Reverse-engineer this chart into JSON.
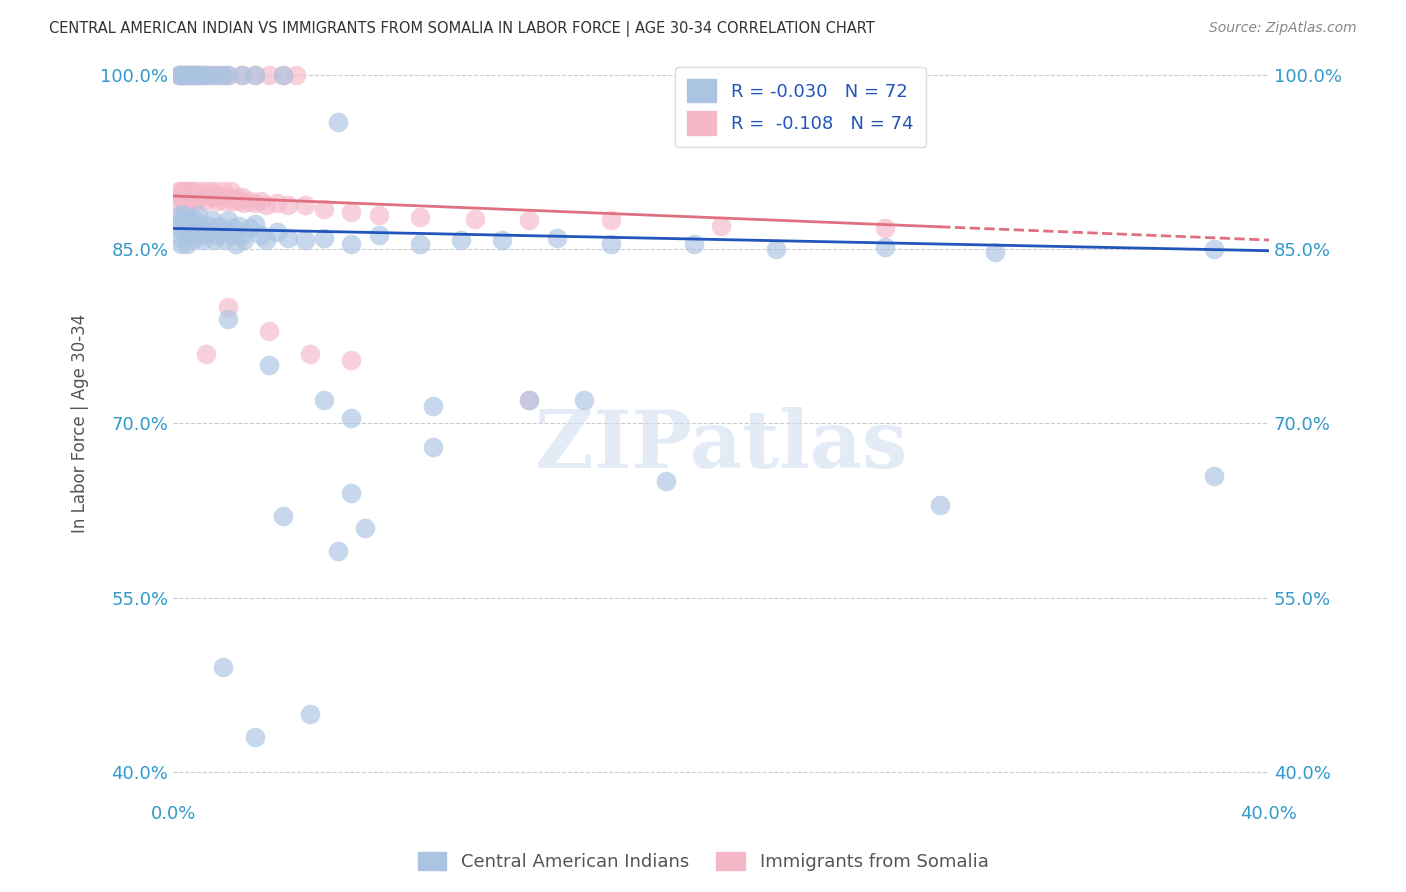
{
  "title": "CENTRAL AMERICAN INDIAN VS IMMIGRANTS FROM SOMALIA IN LABOR FORCE | AGE 30-34 CORRELATION CHART",
  "source": "Source: ZipAtlas.com",
  "ylabel": "In Labor Force | Age 30-34",
  "y_ticks": [
    "100.0%",
    "85.0%",
    "70.0%",
    "55.0%",
    "40.0%"
  ],
  "y_tick_vals": [
    1.0,
    0.85,
    0.7,
    0.55,
    0.4
  ],
  "x_range": [
    0.0,
    0.4
  ],
  "y_range": [
    0.375,
    1.025
  ],
  "blue_R": -0.03,
  "blue_N": 72,
  "pink_R": -0.108,
  "pink_N": 74,
  "watermark_text": "ZIPatlas",
  "blue_color": "#aac4e2",
  "pink_color": "#f5b8c8",
  "blue_line_color": "#2255bb",
  "pink_line_color": "#e07080",
  "grid_color": "#cccccc",
  "blue_scatter_x": [
    0.001,
    0.002,
    0.002,
    0.003,
    0.003,
    0.004,
    0.004,
    0.005,
    0.005,
    0.006,
    0.006,
    0.007,
    0.007,
    0.008,
    0.008,
    0.009,
    0.01,
    0.01,
    0.011,
    0.012,
    0.013,
    0.014,
    0.015,
    0.016,
    0.017,
    0.018,
    0.019,
    0.02,
    0.021,
    0.022,
    0.023,
    0.024,
    0.025,
    0.026,
    0.028,
    0.03,
    0.032,
    0.034,
    0.038,
    0.042,
    0.048,
    0.055,
    0.065,
    0.075,
    0.09,
    0.105,
    0.12,
    0.14,
    0.16,
    0.19,
    0.22,
    0.26,
    0.3,
    0.38,
    0.002,
    0.003,
    0.004,
    0.005,
    0.006,
    0.007,
    0.008,
    0.009,
    0.01,
    0.012,
    0.014,
    0.016,
    0.018,
    0.02,
    0.025,
    0.03,
    0.04,
    0.06
  ],
  "blue_scatter_y": [
    0.87,
    0.86,
    0.88,
    0.855,
    0.875,
    0.865,
    0.88,
    0.87,
    0.855,
    0.862,
    0.875,
    0.858,
    0.87,
    0.865,
    0.875,
    0.88,
    0.862,
    0.87,
    0.858,
    0.865,
    0.87,
    0.875,
    0.858,
    0.862,
    0.87,
    0.865,
    0.858,
    0.875,
    0.862,
    0.868,
    0.855,
    0.87,
    0.862,
    0.858,
    0.868,
    0.872,
    0.862,
    0.858,
    0.865,
    0.86,
    0.858,
    0.86,
    0.855,
    0.862,
    0.855,
    0.858,
    0.858,
    0.86,
    0.855,
    0.855,
    0.85,
    0.852,
    0.848,
    0.85,
    1.0,
    1.0,
    1.0,
    1.0,
    1.0,
    1.0,
    1.0,
    1.0,
    1.0,
    1.0,
    1.0,
    1.0,
    1.0,
    1.0,
    1.0,
    1.0,
    1.0,
    0.96
  ],
  "blue_outliers_x": [
    0.02,
    0.035,
    0.055,
    0.065,
    0.13,
    0.28,
    0.38,
    0.095,
    0.15,
    0.065,
    0.095
  ],
  "blue_outliers_y": [
    0.79,
    0.75,
    0.72,
    0.705,
    0.72,
    0.63,
    0.655,
    0.715,
    0.72,
    0.64,
    0.68
  ],
  "blue_low_x": [
    0.04,
    0.06,
    0.07,
    0.18,
    0.018,
    0.03,
    0.05
  ],
  "blue_low_y": [
    0.62,
    0.59,
    0.61,
    0.65,
    0.49,
    0.43,
    0.45
  ],
  "pink_scatter_x": [
    0.001,
    0.002,
    0.002,
    0.003,
    0.003,
    0.004,
    0.004,
    0.005,
    0.005,
    0.006,
    0.006,
    0.007,
    0.007,
    0.008,
    0.008,
    0.009,
    0.01,
    0.011,
    0.012,
    0.013,
    0.014,
    0.015,
    0.016,
    0.017,
    0.018,
    0.019,
    0.02,
    0.021,
    0.022,
    0.023,
    0.024,
    0.025,
    0.026,
    0.028,
    0.03,
    0.032,
    0.034,
    0.038,
    0.042,
    0.048,
    0.055,
    0.065,
    0.075,
    0.09,
    0.11,
    0.13,
    0.16,
    0.2,
    0.26,
    0.002,
    0.003,
    0.004,
    0.005,
    0.006,
    0.007,
    0.008,
    0.009,
    0.01,
    0.012,
    0.014,
    0.016,
    0.018,
    0.02,
    0.025,
    0.03,
    0.035,
    0.04,
    0.045
  ],
  "pink_scatter_y": [
    0.89,
    0.9,
    0.895,
    0.9,
    0.895,
    0.9,
    0.895,
    0.89,
    0.9,
    0.892,
    0.9,
    0.895,
    0.9,
    0.892,
    0.9,
    0.895,
    0.895,
    0.9,
    0.892,
    0.9,
    0.895,
    0.9,
    0.892,
    0.895,
    0.9,
    0.892,
    0.895,
    0.9,
    0.892,
    0.895,
    0.892,
    0.895,
    0.89,
    0.892,
    0.89,
    0.892,
    0.888,
    0.89,
    0.888,
    0.888,
    0.885,
    0.882,
    0.88,
    0.878,
    0.876,
    0.875,
    0.875,
    0.87,
    0.868,
    1.0,
    1.0,
    1.0,
    1.0,
    1.0,
    1.0,
    1.0,
    1.0,
    1.0,
    1.0,
    1.0,
    1.0,
    1.0,
    1.0,
    1.0,
    1.0,
    1.0,
    1.0,
    1.0
  ],
  "pink_outliers_x": [
    0.02,
    0.035,
    0.065,
    0.13,
    0.012,
    0.05
  ],
  "pink_outliers_y": [
    0.8,
    0.78,
    0.755,
    0.72,
    0.76,
    0.76
  ],
  "pink_line_x_end": 0.28,
  "blue_line_intercept": 0.868,
  "blue_line_slope": -0.048,
  "pink_line_intercept": 0.896,
  "pink_line_slope": -0.095
}
